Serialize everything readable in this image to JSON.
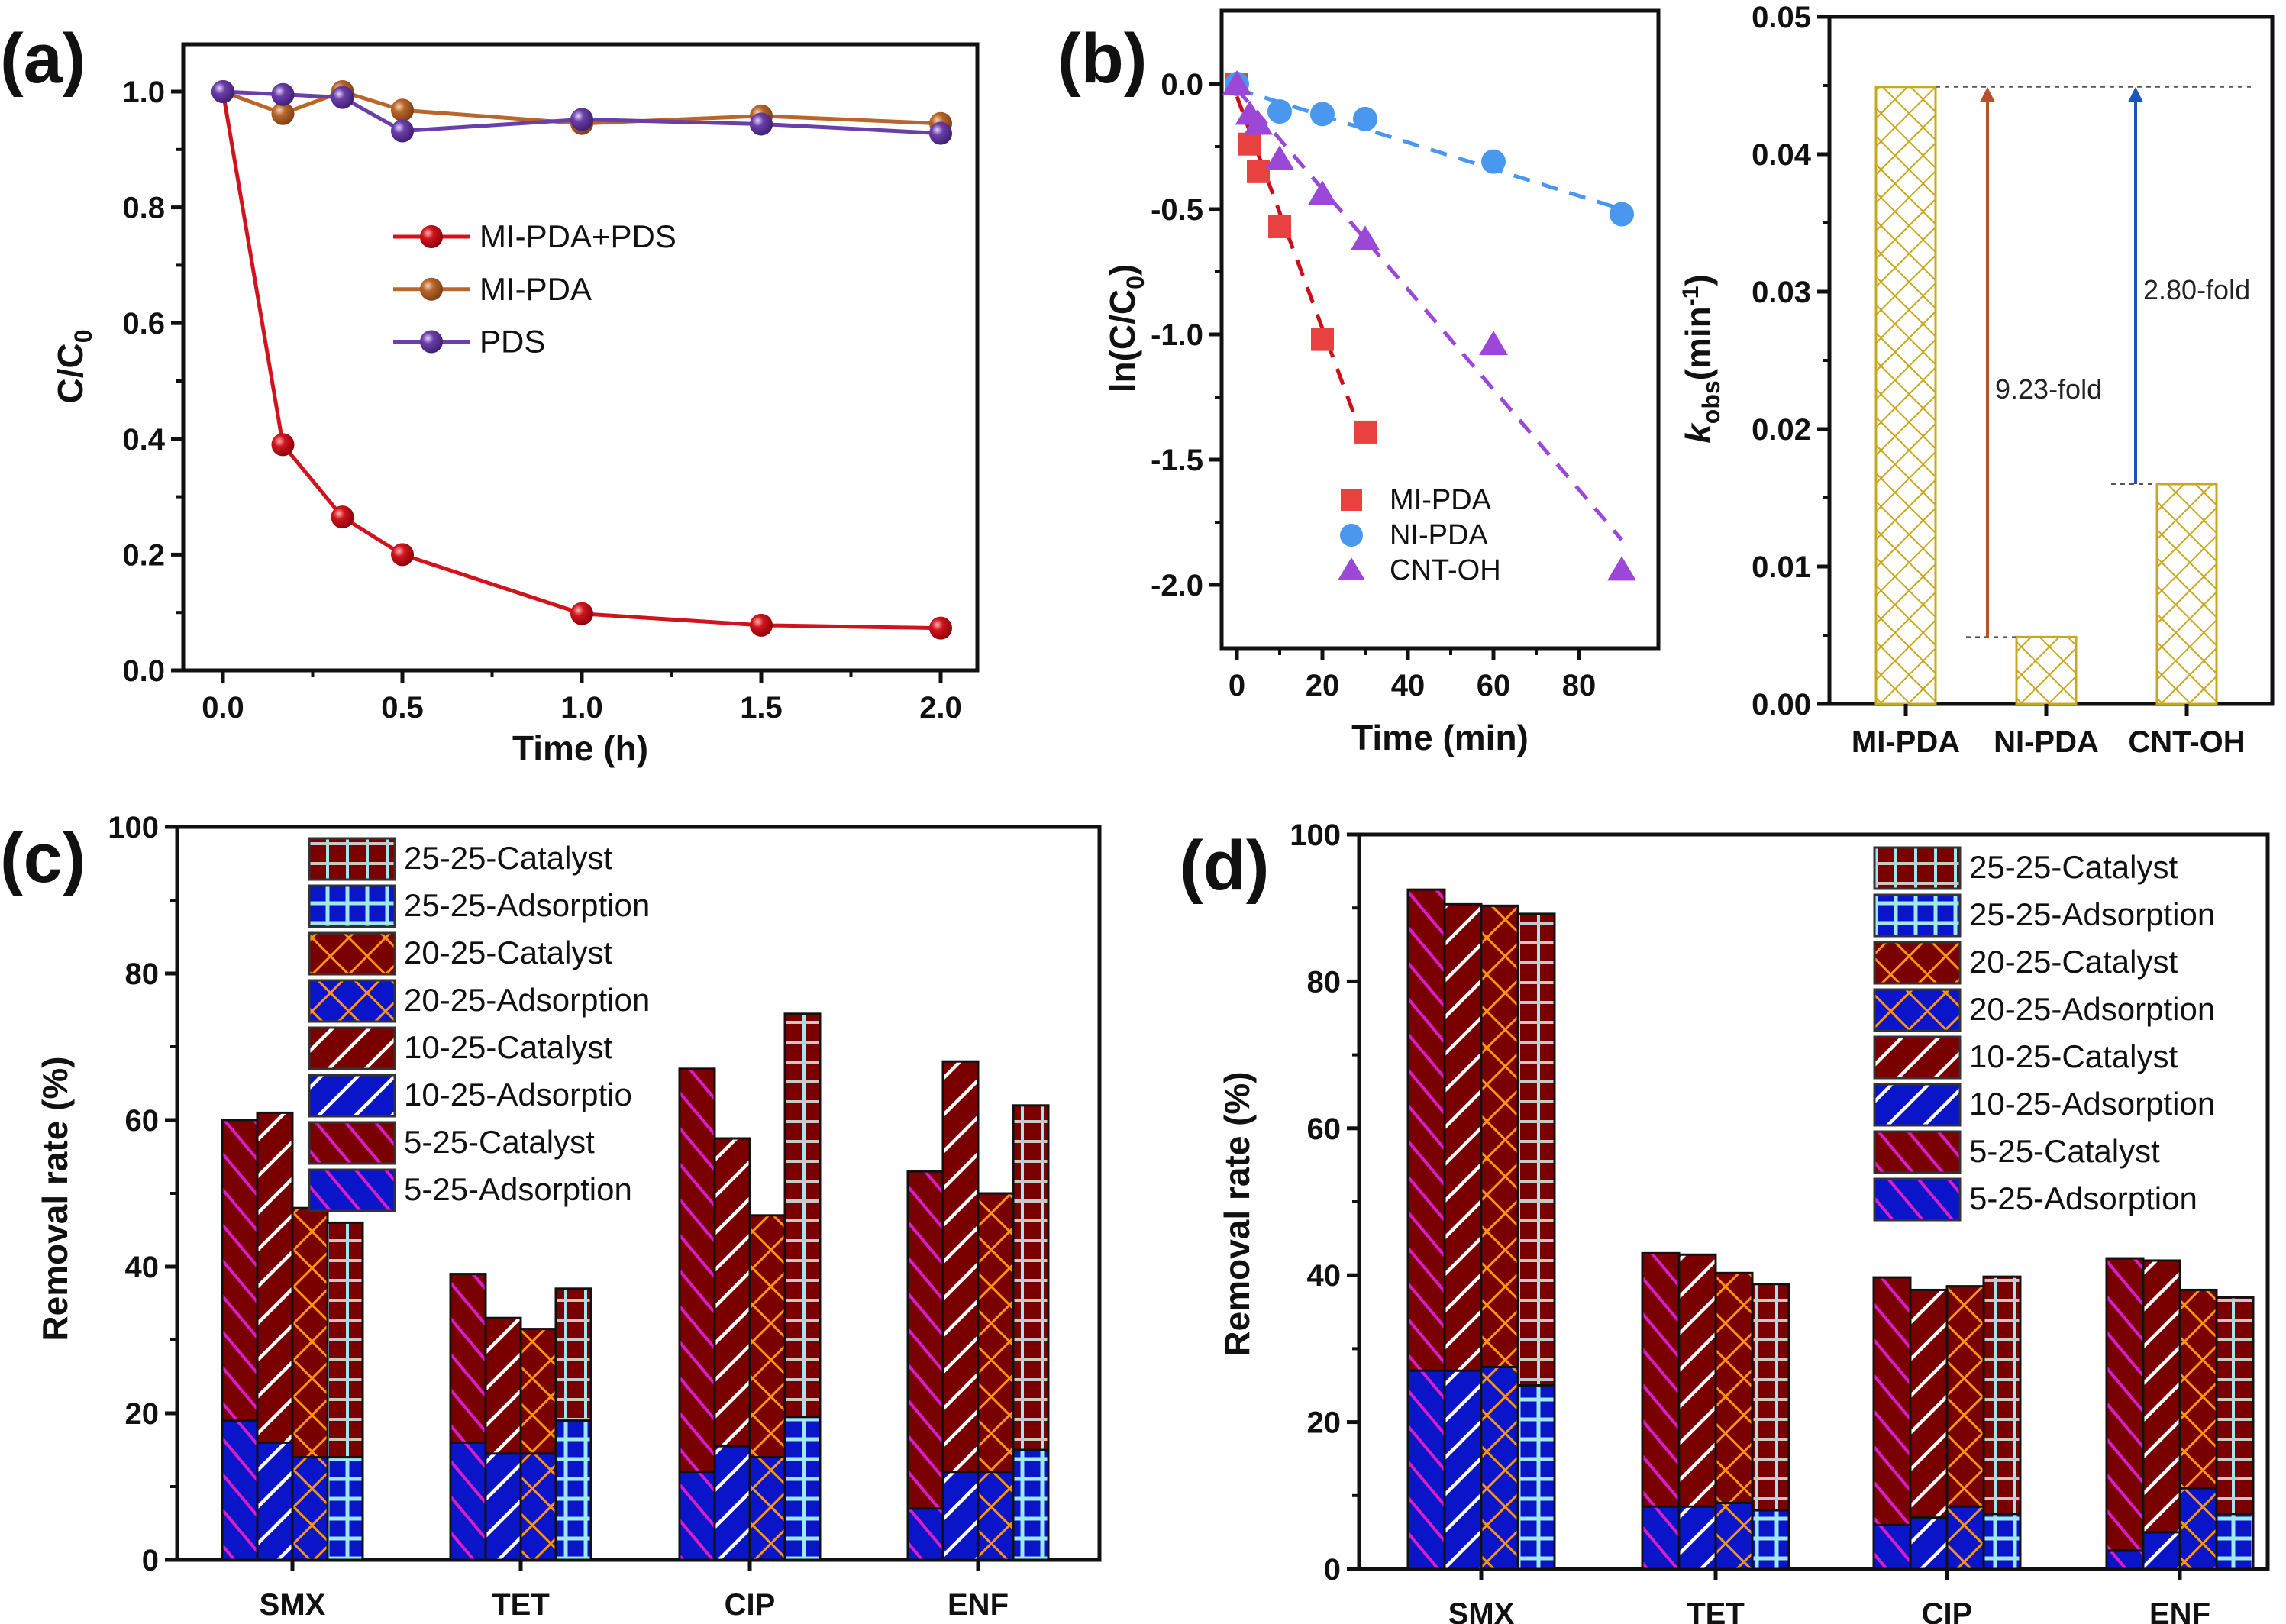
{
  "panel_labels": {
    "a": "(a)",
    "b": "(b)",
    "c": "(c)",
    "d": "(d)"
  },
  "chart_data": [
    {
      "id": "a",
      "type": "line",
      "title": "",
      "xlabel": "Time (h)",
      "ylabel": "C/C0",
      "ylabel_main": "C/C",
      "ylabel_sub": "0",
      "xlim": [
        -0.1,
        2.1
      ],
      "ylim": [
        0.0,
        1.1
      ],
      "xticks": [
        "0.0",
        "0.5",
        "1.0",
        "1.5",
        "2.0"
      ],
      "xtick_values": [
        0,
        0.5,
        1.0,
        1.5,
        2.0
      ],
      "yticks": [
        "0.0",
        "0.2",
        "0.4",
        "0.6",
        "0.8",
        "1.0"
      ],
      "ytick_values": [
        0,
        0.2,
        0.4,
        0.6,
        0.8,
        1.0
      ],
      "legend_position": "center",
      "grid": false,
      "series": [
        {
          "name": "MI-PDA+PDS",
          "color": "#d0141e",
          "x": [
            0,
            0.167,
            0.333,
            0.5,
            1.0,
            1.5,
            2.0
          ],
          "y": [
            1.0,
            0.39,
            0.265,
            0.2,
            0.098,
            0.078,
            0.073
          ]
        },
        {
          "name": "MI-PDA",
          "color": "#b8662c",
          "x": [
            0,
            0.167,
            0.333,
            0.5,
            1.0,
            1.5,
            2.0
          ],
          "y": [
            1.0,
            0.962,
            1.0,
            0.968,
            0.945,
            0.958,
            0.945
          ]
        },
        {
          "name": "PDS",
          "color": "#6a3fa8",
          "x": [
            0,
            0.167,
            0.333,
            0.5,
            1.0,
            1.5,
            2.0
          ],
          "y": [
            1.0,
            0.995,
            0.99,
            0.932,
            0.952,
            0.944,
            0.928
          ]
        }
      ]
    },
    {
      "id": "b-left",
      "type": "scatter",
      "title": "",
      "xlabel": "Time (min)",
      "ylabel": "ln(C/C0)",
      "ylabel_main": "ln(C/C",
      "ylabel_sub": "0",
      "ylabel_end": ")",
      "xlim": [
        -4,
        96
      ],
      "ylim": [
        -2.25,
        0.25
      ],
      "xticks": [
        "0",
        "20",
        "40",
        "60",
        "80"
      ],
      "xtick_values": [
        0,
        20,
        40,
        60,
        80
      ],
      "yticks": [
        "0.0",
        "-0.5",
        "-1.0",
        "-1.5",
        "-2.0"
      ],
      "ytick_values": [
        0,
        -0.5,
        -1.0,
        -1.5,
        -2.0
      ],
      "legend_position": "bottom-center",
      "grid": false,
      "series": [
        {
          "name": "MI-PDA",
          "marker": "square",
          "color": "#e8413f",
          "fit_color": "#c8101a",
          "x": [
            0,
            3,
            5,
            10,
            20,
            30
          ],
          "y": [
            0,
            -0.24,
            -0.35,
            -0.57,
            -1.02,
            -1.39
          ],
          "fit": {
            "x": [
              0,
              30
            ],
            "y": [
              -0.05,
              -1.44
            ]
          }
        },
        {
          "name": "NI-PDA",
          "marker": "circle",
          "color": "#4a98ee",
          "fit_color": "#4a98ee",
          "x": [
            0,
            10,
            20,
            30,
            60,
            90
          ],
          "y": [
            0,
            -0.11,
            -0.12,
            -0.14,
            -0.31,
            -0.52
          ],
          "fit": {
            "x": [
              0,
              90
            ],
            "y": [
              -0.02,
              -0.5
            ]
          }
        },
        {
          "name": "CNT-OH",
          "marker": "triangle",
          "color": "#9b48d8",
          "fit_color": "#9b48d8",
          "x": [
            0,
            3,
            5,
            10,
            20,
            30,
            60,
            90
          ],
          "y": [
            0,
            -0.12,
            -0.16,
            -0.3,
            -0.44,
            -0.62,
            -1.04,
            -1.94
          ],
          "fit": {
            "x": [
              0,
              90
            ],
            "y": [
              -0.02,
              -1.82
            ]
          }
        }
      ]
    },
    {
      "id": "b-right",
      "type": "bar",
      "title": "",
      "xlabel": "",
      "ylabel": "kobs(min-1)",
      "ylabel_k": "k",
      "ylabel_sub": "obs",
      "ylabel_unit": "(min",
      "ylabel_sup": "-1",
      "ylabel_end": ")",
      "categories": [
        "MI-PDA",
        "NI-PDA",
        "CNT-OH"
      ],
      "values": [
        0.0449,
        0.00487,
        0.016
      ],
      "ylim": [
        0,
        0.05
      ],
      "yticks": [
        "0.00",
        "0.01",
        "0.02",
        "0.03",
        "0.04",
        "0.05"
      ],
      "ytick_values": [
        0,
        0.01,
        0.02,
        0.03,
        0.04,
        0.05
      ],
      "bar_color": "#c8a81e",
      "grid": false,
      "annotations": [
        {
          "text": "9.23-fold",
          "from": "NI-PDA",
          "to": "MI-PDA",
          "color": "#b5532a"
        },
        {
          "text": "2.80-fold",
          "from": "CNT-OH",
          "to": "MI-PDA",
          "color": "#1c55b8"
        }
      ]
    },
    {
      "id": "c",
      "type": "bar",
      "title": "",
      "xlabel": "",
      "ylabel": "Removal rate (%)",
      "categories": [
        "SMX",
        "TET",
        "CIP",
        "ENF"
      ],
      "ylim": [
        0,
        100
      ],
      "yticks": [
        "0",
        "20",
        "40",
        "60",
        "80",
        "100"
      ],
      "ytick_values": [
        0,
        20,
        40,
        60,
        80,
        100
      ],
      "legend_position": "top-left",
      "grid": false,
      "legend": [
        "25-25-Catalyst",
        "25-25-Adsorption",
        "20-25-Catalyst",
        "20-25-Adsorption",
        "10-25-Catalyst",
        "10-25-Adsorption",
        "5-25-Catalyst",
        "5-25-Adsorption"
      ],
      "legend_display": [
        "25-25-Catalyst",
        "25-25-Adsorption",
        "20-25-Catalyst",
        "20-25-Adsorption",
        "10-25-Catalyst",
        "10-25-Adsorptio",
        "5-25-Catalyst",
        "5-25-Adsorption"
      ],
      "groups": [
        "5-25",
        "10-25",
        "20-25",
        "25-25"
      ],
      "series": [
        {
          "name": "5-25-Catalyst",
          "values": [
            60,
            39,
            67,
            53
          ]
        },
        {
          "name": "5-25-Adsorption",
          "values": [
            19,
            16,
            12,
            7
          ]
        },
        {
          "name": "10-25-Catalyst",
          "values": [
            61,
            33,
            57.5,
            68
          ]
        },
        {
          "name": "10-25-Adsorption",
          "values": [
            16,
            14.5,
            15.5,
            12
          ]
        },
        {
          "name": "20-25-Catalyst",
          "values": [
            48,
            31.5,
            47,
            50
          ]
        },
        {
          "name": "20-25-Adsorption",
          "values": [
            14,
            14.5,
            14,
            12
          ]
        },
        {
          "name": "25-25-Catalyst",
          "values": [
            46,
            37,
            74.5,
            62
          ]
        },
        {
          "name": "25-25-Adsorption",
          "values": [
            14,
            19,
            19.5,
            15
          ]
        }
      ]
    },
    {
      "id": "d",
      "type": "bar",
      "title": "",
      "xlabel": "",
      "ylabel": "Removal rate (%)",
      "categories": [
        "SMX",
        "TET",
        "CIP",
        "ENF"
      ],
      "ylim": [
        0,
        100
      ],
      "yticks": [
        "0",
        "20",
        "40",
        "60",
        "80",
        "100"
      ],
      "ytick_values": [
        0,
        20,
        40,
        60,
        80,
        100
      ],
      "legend_position": "top-right",
      "grid": false,
      "legend": [
        "25-25-Catalyst",
        "25-25-Adsorption",
        "20-25-Catalyst",
        "20-25-Adsorption",
        "10-25-Catalyst",
        "10-25-Adsorption",
        "5-25-Catalyst",
        "5-25-Adsorption"
      ],
      "legend_display": [
        "25-25-Catalyst",
        "25-25-Adsorption",
        "20-25-Catalyst",
        "20-25-Adsorption",
        "10-25-Catalyst",
        "10-25-Adsorption",
        "5-25-Catalyst",
        "5-25-Adsorption"
      ],
      "groups": [
        "5-25",
        "10-25",
        "20-25",
        "25-25"
      ],
      "series": [
        {
          "name": "5-25-Catalyst",
          "values": [
            92.5,
            43,
            39.7,
            42.3
          ]
        },
        {
          "name": "5-25-Adsorption",
          "values": [
            27,
            8.5,
            6,
            2.5
          ]
        },
        {
          "name": "10-25-Catalyst",
          "values": [
            90.5,
            42.8,
            38,
            42
          ]
        },
        {
          "name": "10-25-Adsorption",
          "values": [
            27,
            8.5,
            7,
            5
          ]
        },
        {
          "name": "20-25-Catalyst",
          "values": [
            90.3,
            40.3,
            38.5,
            38
          ]
        },
        {
          "name": "20-25-Adsorption",
          "values": [
            27.5,
            9,
            8.5,
            11
          ]
        },
        {
          "name": "25-25-Catalyst",
          "values": [
            89.2,
            38.8,
            39.8,
            37
          ]
        },
        {
          "name": "25-25-Adsorption",
          "values": [
            25,
            8,
            7.5,
            7.5
          ]
        }
      ]
    }
  ],
  "pattern_colors": {
    "catalyst_bg": "#7a0000",
    "adsorption_bg": "#0a14c8",
    "p5_line": "#d81ec8",
    "p10_line": "#ffffff",
    "p20_line": "#ff9410",
    "p25_line": "#9ee8f2"
  }
}
